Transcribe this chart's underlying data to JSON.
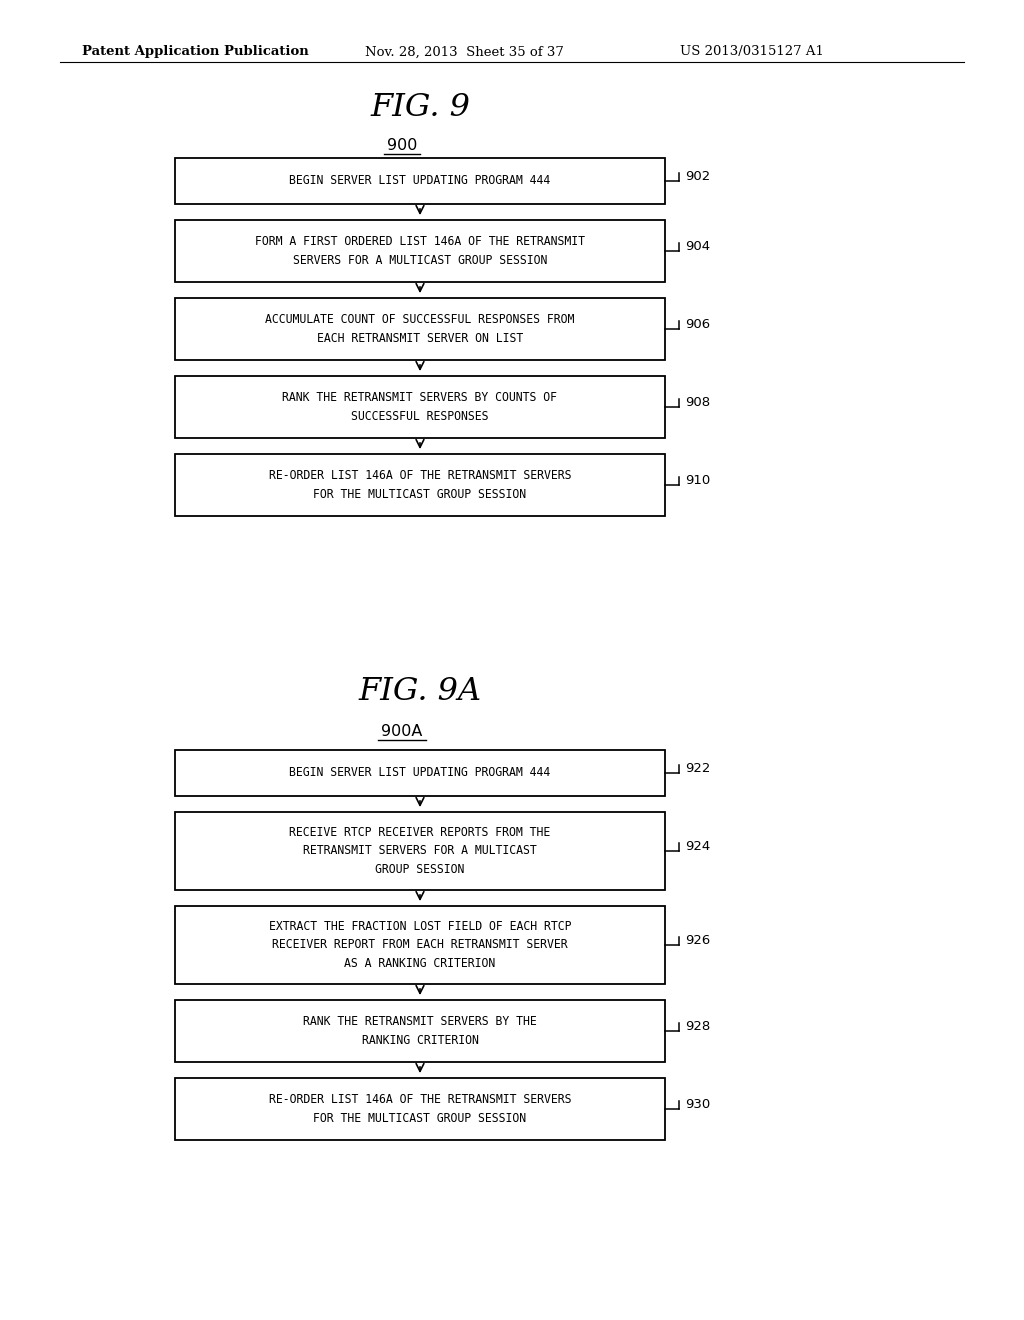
{
  "bg_color": "#ffffff",
  "header_left": "Patent Application Publication",
  "header_mid": "Nov. 28, 2013  Sheet 35 of 37",
  "header_right": "US 2013/0315127 A1",
  "fig9_title": "FIG. 9",
  "fig9_label": "900",
  "fig9_boxes": [
    {
      "lines": [
        "BEGIN SERVER LIST UPDATING PROGRAM 444"
      ],
      "ref": "902"
    },
    {
      "lines": [
        "FORM A FIRST ORDERED LIST 146A OF THE RETRANSMIT",
        "SERVERS FOR A MULTICAST GROUP SESSION"
      ],
      "ref": "904"
    },
    {
      "lines": [
        "ACCUMULATE COUNT OF SUCCESSFUL RESPONSES FROM",
        "EACH RETRANSMIT SERVER ON LIST"
      ],
      "ref": "906"
    },
    {
      "lines": [
        "RANK THE RETRANSMIT SERVERS BY COUNTS OF",
        "SUCCESSFUL RESPONSES"
      ],
      "ref": "908"
    },
    {
      "lines": [
        "RE-ORDER LIST 146A OF THE RETRANSMIT SERVERS",
        "FOR THE MULTICAST GROUP SESSION"
      ],
      "ref": "910"
    }
  ],
  "fig9a_title": "FIG. 9A",
  "fig9a_label": "900A",
  "fig9a_boxes": [
    {
      "lines": [
        "BEGIN SERVER LIST UPDATING PROGRAM 444"
      ],
      "ref": "922"
    },
    {
      "lines": [
        "RECEIVE RTCP RECEIVER REPORTS FROM THE",
        "RETRANSMIT SERVERS FOR A MULTICAST",
        "GROUP SESSION"
      ],
      "ref": "924"
    },
    {
      "lines": [
        "EXTRACT THE FRACTION LOST FIELD OF EACH RTCP",
        "RECEIVER REPORT FROM EACH RETRANSMIT SERVER",
        "AS A RANKING CRITERION"
      ],
      "ref": "926"
    },
    {
      "lines": [
        "RANK THE RETRANSMIT SERVERS BY THE",
        "RANKING CRITERION"
      ],
      "ref": "928"
    },
    {
      "lines": [
        "RE-ORDER LIST 146A OF THE RETRANSMIT SERVERS",
        "FOR THE MULTICAST GROUP SESSION"
      ],
      "ref": "930"
    }
  ]
}
